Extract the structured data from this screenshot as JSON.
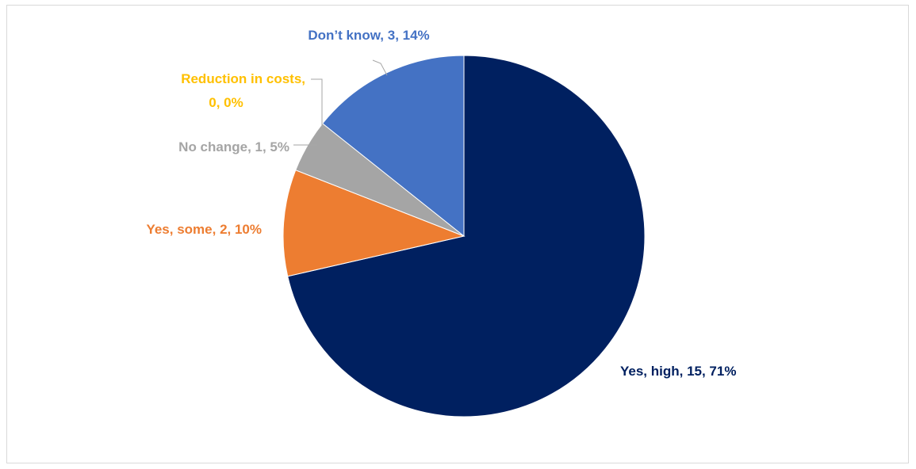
{
  "chart_data": {
    "type": "pie",
    "title": "",
    "slices": [
      {
        "category": "Yes, high",
        "value": 15,
        "percent": "71%",
        "label": "Yes, high, 15, 71%",
        "color": "#002060"
      },
      {
        "category": "Yes, some",
        "value": 2,
        "percent": "10%",
        "label": "Yes, some, 2, 10%",
        "color": "#ED7D31"
      },
      {
        "category": "No change",
        "value": 1,
        "percent": "5%",
        "label": "No change, 1, 5%",
        "color": "#A5A5A5"
      },
      {
        "category": "Reduction in costs",
        "value": 0,
        "percent": "0%",
        "label_lines": [
          "Reduction in costs,",
          "0, 0%"
        ],
        "color": "#FFC000"
      },
      {
        "category": "Don’t know",
        "value": 3,
        "percent": "14%",
        "label": "Don’t know, 3, 14%",
        "color": "#4472C4"
      }
    ],
    "start_angle": "12 o'clock",
    "direction": "clockwise",
    "legend": "none",
    "data_labels": "outside, colored by slice"
  }
}
